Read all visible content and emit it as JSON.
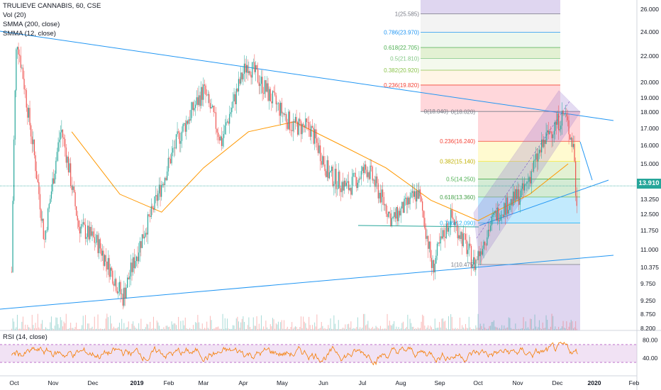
{
  "header": {
    "symbol_line": "TRULIEVE CANNABIS, 60, CSE",
    "vol_label": "Vol (20)",
    "smma_slow_label": "SMMA (200, close)",
    "smma_fast_label": "SMMA (12, close)",
    "rsi_label": "RSI (14, close)"
  },
  "last_price": "13.910",
  "colors": {
    "up": "#26a69a",
    "down": "#ef5350",
    "trend_line": "#2196f3",
    "smma_slow": "#ff9800",
    "rsi_line": "#f57c00",
    "rsi_band": "#e1bee7"
  },
  "chart_data": [
    {
      "type": "candlestick",
      "title": "TRULIEVE CANNABIS, 60, CSE",
      "x_ticks": [
        "Oct",
        "Nov",
        "Dec",
        "2019",
        "Feb",
        "Mar",
        "Apr",
        "May",
        "Jun",
        "Jul",
        "Aug",
        "Sep",
        "Oct",
        "Nov",
        "Dec",
        "2020",
        "Feb"
      ],
      "y_ticks": [
        "26.000",
        "24.000",
        "22.000",
        "20.000",
        "19.000",
        "18.000",
        "17.000",
        "16.000",
        "15.000",
        "13.250",
        "12.500",
        "11.750",
        "11.000",
        "10.375",
        "9.750",
        "9.250",
        "8.750",
        "8.200"
      ],
      "price_path": [
        {
          "date": "2018-09-29",
          "price": 10.2
        },
        {
          "date": "2018-10-03",
          "price": 23.6
        },
        {
          "date": "2018-10-12",
          "price": 18.0
        },
        {
          "date": "2018-10-25",
          "price": 11.3
        },
        {
          "date": "2018-11-07",
          "price": 17.0
        },
        {
          "date": "2018-11-20",
          "price": 12.0
        },
        {
          "date": "2018-12-05",
          "price": 11.2
        },
        {
          "date": "2018-12-22",
          "price": 9.3
        },
        {
          "date": "2019-01-15",
          "price": 12.5
        },
        {
          "date": "2019-02-08",
          "price": 16.3
        },
        {
          "date": "2019-03-01",
          "price": 19.5
        },
        {
          "date": "2019-03-15",
          "price": 16.2
        },
        {
          "date": "2019-04-04",
          "price": 21.5
        },
        {
          "date": "2019-04-22",
          "price": 19.0
        },
        {
          "date": "2019-05-08",
          "price": 17.2
        },
        {
          "date": "2019-05-22",
          "price": 17.0
        },
        {
          "date": "2019-06-05",
          "price": 14.5
        },
        {
          "date": "2019-06-20",
          "price": 13.8
        },
        {
          "date": "2019-07-05",
          "price": 14.8
        },
        {
          "date": "2019-07-25",
          "price": 12.2
        },
        {
          "date": "2019-08-15",
          "price": 13.6
        },
        {
          "date": "2019-08-26",
          "price": 10.3
        },
        {
          "date": "2019-09-10",
          "price": 12.4
        },
        {
          "date": "2019-09-28",
          "price": 10.45
        },
        {
          "date": "2019-10-15",
          "price": 12.5
        },
        {
          "date": "2019-11-05",
          "price": 13.6
        },
        {
          "date": "2019-11-25",
          "price": 16.8
        },
        {
          "date": "2019-12-07",
          "price": 17.9
        },
        {
          "date": "2019-12-15",
          "price": 15.8
        },
        {
          "date": "2019-12-17",
          "price": 12.4
        },
        {
          "date": "2019-12-18",
          "price": 13.91
        }
      ],
      "smma_200_path": [
        {
          "date": "2018-11-15",
          "price": 16.8
        },
        {
          "date": "2018-12-20",
          "price": 13.5
        },
        {
          "date": "2019-01-25",
          "price": 12.6
        },
        {
          "date": "2019-03-01",
          "price": 14.8
        },
        {
          "date": "2019-04-05",
          "price": 16.8
        },
        {
          "date": "2019-05-10",
          "price": 17.4
        },
        {
          "date": "2019-06-15",
          "price": 16.0
        },
        {
          "date": "2019-07-20",
          "price": 14.8
        },
        {
          "date": "2019-08-25",
          "price": 13.2
        },
        {
          "date": "2019-10-01",
          "price": 12.2
        },
        {
          "date": "2019-11-10",
          "price": 13.5
        },
        {
          "date": "2019-12-10",
          "price": 15.0
        }
      ],
      "fib_levels": [
        {
          "ratio": "1",
          "price": "25.585"
        },
        {
          "ratio": "0.786",
          "price": "23.970"
        },
        {
          "ratio": "0.618",
          "price": "22.705"
        },
        {
          "ratio": "0.5",
          "price": "21.810"
        },
        {
          "ratio": "0.382",
          "price": "20.920"
        },
        {
          "ratio": "0.236",
          "price": "19.820"
        },
        {
          "ratio": "0",
          "price": "18.040"
        },
        {
          "ratio": "0",
          "price": "18.020"
        },
        {
          "ratio": "0.236",
          "price": "16.240"
        },
        {
          "ratio": "0.382",
          "price": "15.140"
        },
        {
          "ratio": "0.5",
          "price": "14.250"
        },
        {
          "ratio": "0.618",
          "price": "13.360"
        },
        {
          "ratio": "0.786",
          "price": "12.090"
        },
        {
          "ratio": "1",
          "price": "10.475"
        }
      ],
      "last_price": 13.91
    },
    {
      "type": "line",
      "title": "RSI (14, close)",
      "y_ticks": [
        "80.00",
        "40.00"
      ],
      "band": [
        30,
        70
      ]
    }
  ]
}
